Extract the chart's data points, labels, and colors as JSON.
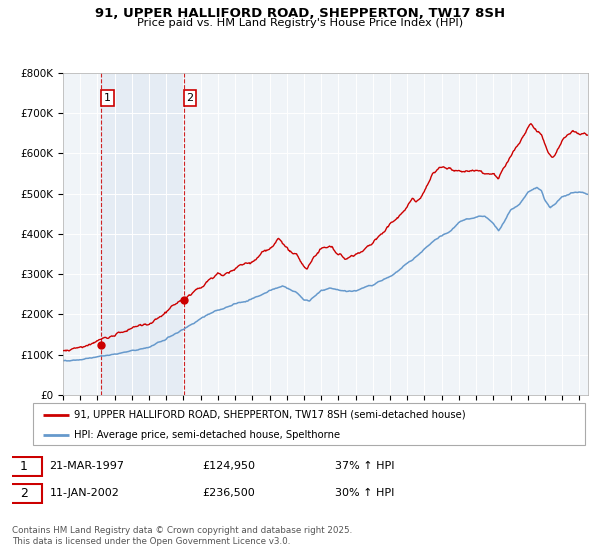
{
  "title_line1": "91, UPPER HALLIFORD ROAD, SHEPPERTON, TW17 8SH",
  "title_line2": "Price paid vs. HM Land Registry's House Price Index (HPI)",
  "legend_label_red": "91, UPPER HALLIFORD ROAD, SHEPPERTON, TW17 8SH (semi-detached house)",
  "legend_label_blue": "HPI: Average price, semi-detached house, Spelthorne",
  "transaction1_date": "21-MAR-1997",
  "transaction1_price": "£124,950",
  "transaction1_hpi": "37% ↑ HPI",
  "transaction2_date": "11-JAN-2002",
  "transaction2_price": "£236,500",
  "transaction2_hpi": "30% ↑ HPI",
  "footer": "Contains HM Land Registry data © Crown copyright and database right 2025.\nThis data is licensed under the Open Government Licence v3.0.",
  "color_red": "#cc0000",
  "color_blue": "#6699cc",
  "color_bg_shade": "#dce6f1",
  "background_color": "#ffffff",
  "ylim": [
    0,
    800000
  ],
  "yticks": [
    0,
    100000,
    200000,
    300000,
    400000,
    500000,
    600000,
    700000,
    800000
  ],
  "xlim_start": 1995.0,
  "xlim_end": 2025.5,
  "transaction1_x": 1997.22,
  "transaction1_y": 124950,
  "transaction2_x": 2002.03,
  "transaction2_y": 236500
}
